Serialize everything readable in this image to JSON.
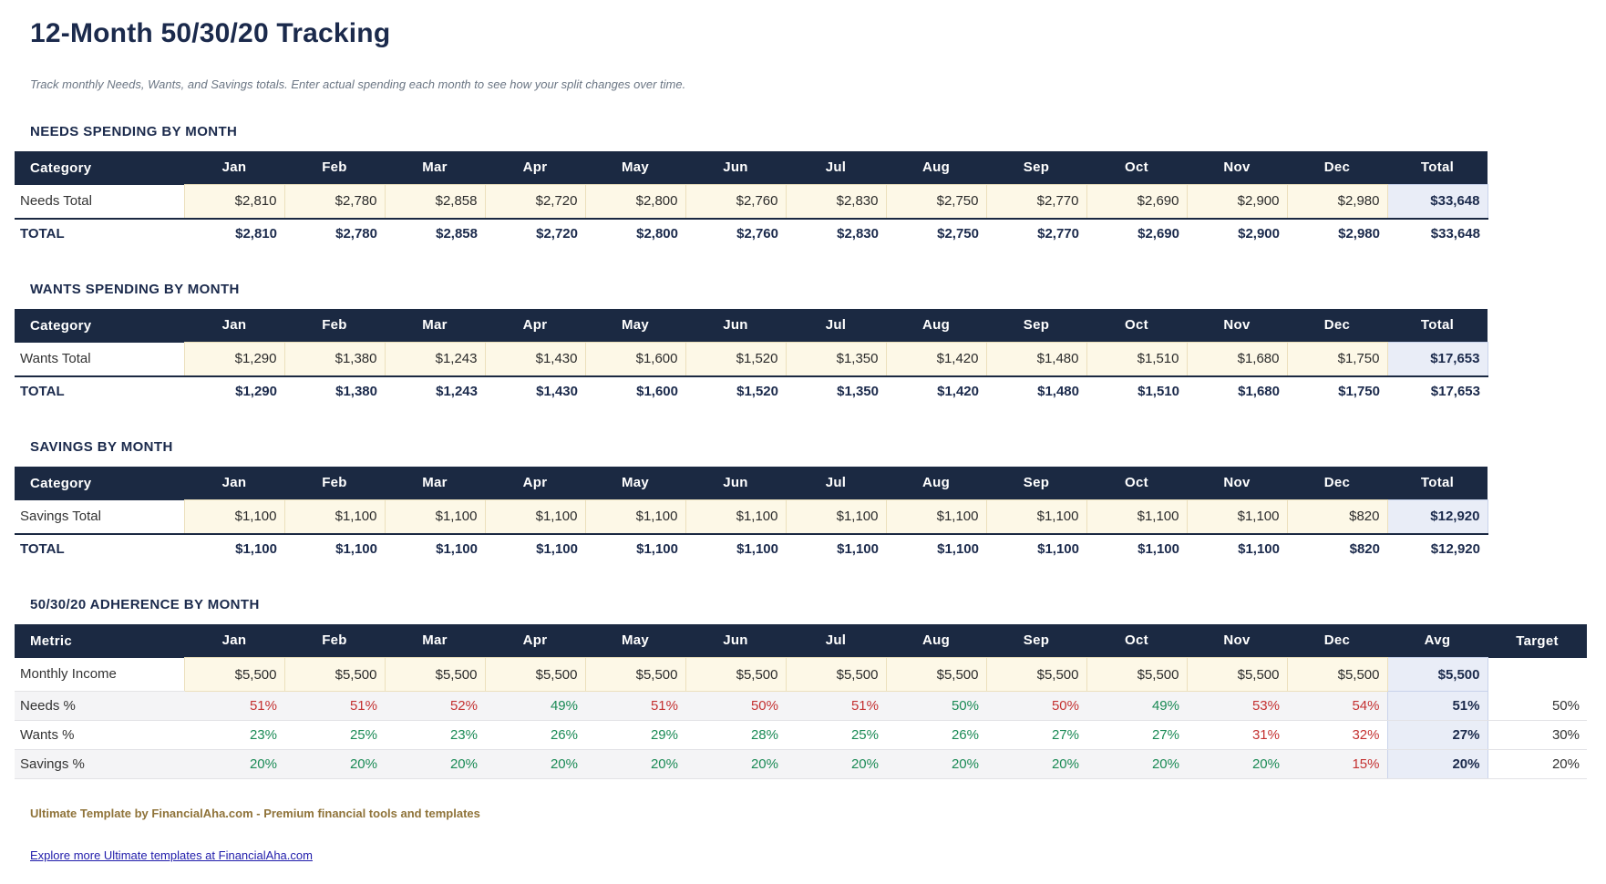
{
  "page": {
    "title": "12-Month 50/30/20 Tracking",
    "subtitle": "Track monthly Needs, Wants, and Savings totals. Enter actual spending each month to see how your split changes over time."
  },
  "months": [
    "Jan",
    "Feb",
    "Mar",
    "Apr",
    "May",
    "Jun",
    "Jul",
    "Aug",
    "Sep",
    "Oct",
    "Nov",
    "Dec"
  ],
  "sections": [
    {
      "heading": "NEEDS SPENDING BY MONTH",
      "first_col_header": "Category",
      "total_col_header": "Total",
      "row_label": "Needs Total",
      "values": [
        "$2,810",
        "$2,780",
        "$2,858",
        "$2,720",
        "$2,800",
        "$2,760",
        "$2,830",
        "$2,750",
        "$2,770",
        "$2,690",
        "$2,900",
        "$2,980"
      ],
      "row_total": "$33,648",
      "total_row_label": "TOTAL"
    },
    {
      "heading": "WANTS SPENDING BY MONTH",
      "first_col_header": "Category",
      "total_col_header": "Total",
      "row_label": "Wants Total",
      "values": [
        "$1,290",
        "$1,380",
        "$1,243",
        "$1,430",
        "$1,600",
        "$1,520",
        "$1,350",
        "$1,420",
        "$1,480",
        "$1,510",
        "$1,680",
        "$1,750"
      ],
      "row_total": "$17,653",
      "total_row_label": "TOTAL"
    },
    {
      "heading": "SAVINGS BY MONTH",
      "first_col_header": "Category",
      "total_col_header": "Total",
      "row_label": "Savings Total",
      "values": [
        "$1,100",
        "$1,100",
        "$1,100",
        "$1,100",
        "$1,100",
        "$1,100",
        "$1,100",
        "$1,100",
        "$1,100",
        "$1,100",
        "$1,100",
        "$820"
      ],
      "row_total": "$12,920",
      "total_row_label": "TOTAL"
    }
  ],
  "adherence": {
    "heading": "50/30/20 ADHERENCE BY MONTH",
    "first_col_header": "Metric",
    "avg_col_header": "Avg",
    "target_col_header": "Target",
    "rows": [
      {
        "label": "Monthly Income",
        "kind": "input",
        "values": [
          "$5,500",
          "$5,500",
          "$5,500",
          "$5,500",
          "$5,500",
          "$5,500",
          "$5,500",
          "$5,500",
          "$5,500",
          "$5,500",
          "$5,500",
          "$5,500"
        ],
        "avg": "$5,500",
        "target": ""
      },
      {
        "label": "Needs %",
        "kind": "pct",
        "striped": true,
        "values": [
          "51%",
          "51%",
          "52%",
          "49%",
          "51%",
          "50%",
          "51%",
          "50%",
          "50%",
          "49%",
          "53%",
          "54%"
        ],
        "statuses": [
          "over",
          "over",
          "over",
          "ok",
          "over",
          "over",
          "over",
          "ok",
          "over",
          "ok",
          "over",
          "over"
        ],
        "avg": "51%",
        "target": "50%"
      },
      {
        "label": "Wants %",
        "kind": "pct",
        "striped": false,
        "values": [
          "23%",
          "25%",
          "23%",
          "26%",
          "29%",
          "28%",
          "25%",
          "26%",
          "27%",
          "27%",
          "31%",
          "32%"
        ],
        "statuses": [
          "ok",
          "ok",
          "ok",
          "ok",
          "ok",
          "ok",
          "ok",
          "ok",
          "ok",
          "ok",
          "over",
          "over"
        ],
        "avg": "27%",
        "target": "30%"
      },
      {
        "label": "Savings %",
        "kind": "pct",
        "striped": true,
        "values": [
          "20%",
          "20%",
          "20%",
          "20%",
          "20%",
          "20%",
          "20%",
          "20%",
          "20%",
          "20%",
          "20%",
          "15%"
        ],
        "statuses": [
          "ok",
          "ok",
          "ok",
          "ok",
          "ok",
          "ok",
          "ok",
          "ok",
          "ok",
          "ok",
          "ok",
          "over"
        ],
        "avg": "20%",
        "target": "20%"
      }
    ]
  },
  "footer": {
    "brand_line": "Ultimate Template by FinancialAha.com - Premium financial tools and templates",
    "link_text": "Explore more Ultimate templates at FinancialAha.com"
  },
  "colors": {
    "navy": "#1b2942",
    "input_cell_bg": "#fdf8e7",
    "input_cell_border": "#ece0bd",
    "total_cell_bg": "#e9edf7",
    "total_cell_border": "#c9d3ea",
    "stripe_bg": "#f4f4f6",
    "over_target_red": "#c43131",
    "within_target_green": "#1a8a55",
    "footer_brand_brown": "#8f7339",
    "link_blue": "#201cab"
  }
}
